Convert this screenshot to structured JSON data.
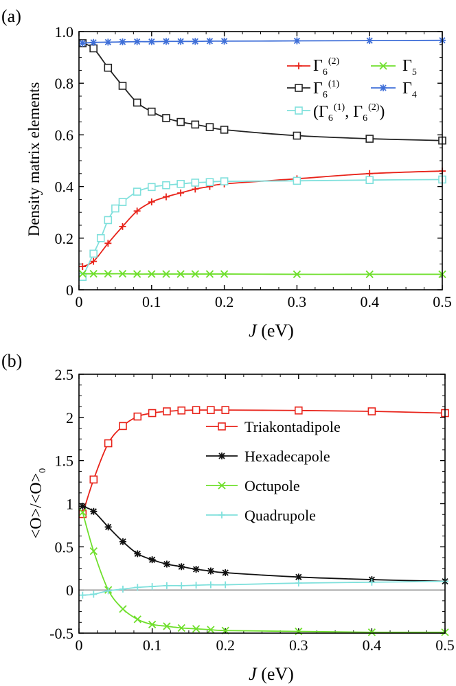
{
  "chart_data": [
    {
      "panel_label": "(a)",
      "type": "line",
      "title": "",
      "xlabel_italic": "J",
      "xlabel_rest": " (eV)",
      "ylabel": "Density matrix elements",
      "xlim": [
        0,
        0.5
      ],
      "ylim": [
        0,
        1.0
      ],
      "xticks": [
        0,
        0.1,
        0.2,
        0.3,
        0.4,
        0.5
      ],
      "xtick_labels": [
        "0",
        "0.1",
        "0.2",
        "0.3",
        "0.4",
        "0.5"
      ],
      "yticks": [
        0,
        0.2,
        0.4,
        0.6,
        0.8,
        1.0
      ],
      "ytick_labels": [
        "0",
        "0.2",
        "0.4",
        "0.6",
        "0.8",
        "1.0"
      ],
      "legend_position": "top-right",
      "series": [
        {
          "name": "Γ6(2)",
          "color": "#e8231a",
          "marker": "plus",
          "x": [
            0.005,
            0.02,
            0.04,
            0.06,
            0.08,
            0.1,
            0.12,
            0.14,
            0.16,
            0.18,
            0.2,
            0.3,
            0.4,
            0.5
          ],
          "values": [
            0.09,
            0.11,
            0.18,
            0.245,
            0.305,
            0.34,
            0.36,
            0.375,
            0.39,
            0.4,
            0.41,
            0.43,
            0.45,
            0.46
          ]
        },
        {
          "name": "Γ6(1)",
          "color": "#222222",
          "marker": "square",
          "x": [
            0.005,
            0.02,
            0.04,
            0.06,
            0.08,
            0.1,
            0.12,
            0.14,
            0.16,
            0.18,
            0.2,
            0.3,
            0.4,
            0.5
          ],
          "values": [
            0.955,
            0.935,
            0.86,
            0.79,
            0.725,
            0.69,
            0.665,
            0.65,
            0.64,
            0.63,
            0.62,
            0.597,
            0.585,
            0.578
          ]
        },
        {
          "name": "(Γ6(1), Γ6(2))",
          "color": "#7fe0dc",
          "marker": "square",
          "x": [
            0.005,
            0.02,
            0.03,
            0.04,
            0.05,
            0.06,
            0.08,
            0.1,
            0.12,
            0.14,
            0.16,
            0.18,
            0.2,
            0.3,
            0.4,
            0.5
          ],
          "values": [
            0.05,
            0.14,
            0.2,
            0.27,
            0.315,
            0.34,
            0.38,
            0.398,
            0.405,
            0.41,
            0.415,
            0.417,
            0.42,
            0.422,
            0.425,
            0.427
          ]
        },
        {
          "name": "Γ5",
          "color": "#6fdf2c",
          "marker": "x",
          "x": [
            0.005,
            0.02,
            0.04,
            0.06,
            0.08,
            0.1,
            0.12,
            0.14,
            0.16,
            0.18,
            0.2,
            0.3,
            0.4,
            0.5
          ],
          "values": [
            0.062,
            0.062,
            0.062,
            0.062,
            0.061,
            0.061,
            0.061,
            0.061,
            0.061,
            0.061,
            0.061,
            0.06,
            0.06,
            0.06
          ]
        },
        {
          "name": "Γ4",
          "color": "#3f6fd8",
          "marker": "star",
          "x": [
            0.005,
            0.02,
            0.04,
            0.06,
            0.08,
            0.1,
            0.12,
            0.14,
            0.16,
            0.18,
            0.2,
            0.3,
            0.4,
            0.5
          ],
          "values": [
            0.955,
            0.958,
            0.959,
            0.96,
            0.961,
            0.961,
            0.962,
            0.962,
            0.962,
            0.963,
            0.963,
            0.964,
            0.965,
            0.966
          ]
        }
      ],
      "legend": [
        {
          "series": 0,
          "base": "Γ",
          "sub": "6",
          "sup": "(2)"
        },
        {
          "series": 3,
          "base": "Γ",
          "sub": "5",
          "sup": ""
        },
        {
          "series": 1,
          "base": "Γ",
          "sub": "6",
          "sup": "(1)"
        },
        {
          "series": 4,
          "base": "Γ",
          "sub": "4",
          "sup": ""
        },
        {
          "series": 2,
          "pre": "(Γ",
          "sub1": "6",
          "sup1": "(1)",
          "mid": ", Γ",
          "sub2": "6",
          "sup2": "(2)",
          "post": ")"
        }
      ]
    },
    {
      "panel_label": "(b)",
      "type": "line",
      "title": "",
      "xlabel_italic": "J",
      "xlabel_rest": " (eV)",
      "ylabel": "<O>/<O>",
      "ylabel_sub": "0",
      "xlim": [
        0,
        0.5
      ],
      "ylim": [
        -0.5,
        2.5
      ],
      "xticks": [
        0,
        0.1,
        0.2,
        0.3,
        0.4,
        0.5
      ],
      "xtick_labels": [
        "0",
        "0.1",
        "0.2",
        "0.3",
        "0.4",
        "0.5"
      ],
      "yticks": [
        -0.5,
        0,
        0.5,
        1,
        1.5,
        2,
        2.5
      ],
      "ytick_labels": [
        "-0.5",
        "0",
        "0.5",
        "1",
        "1.5",
        "2",
        "2.5"
      ],
      "zero_line": true,
      "legend_position": "center-right",
      "series": [
        {
          "name": "Triakontadipole",
          "color": "#e8231a",
          "marker": "square",
          "x": [
            0.005,
            0.02,
            0.04,
            0.06,
            0.08,
            0.1,
            0.12,
            0.14,
            0.16,
            0.18,
            0.2,
            0.3,
            0.4,
            0.5
          ],
          "values": [
            0.88,
            1.28,
            1.7,
            1.9,
            2.01,
            2.05,
            2.07,
            2.08,
            2.085,
            2.085,
            2.085,
            2.08,
            2.07,
            2.05
          ]
        },
        {
          "name": "Hexadecapole",
          "color": "#111111",
          "marker": "star",
          "x": [
            0.005,
            0.02,
            0.04,
            0.06,
            0.08,
            0.1,
            0.12,
            0.14,
            0.16,
            0.18,
            0.2,
            0.3,
            0.4,
            0.5
          ],
          "values": [
            0.97,
            0.91,
            0.73,
            0.56,
            0.42,
            0.35,
            0.3,
            0.27,
            0.24,
            0.22,
            0.2,
            0.15,
            0.12,
            0.1
          ]
        },
        {
          "name": "Octupole",
          "color": "#6fdf2c",
          "marker": "x",
          "x": [
            0.005,
            0.02,
            0.04,
            0.06,
            0.08,
            0.1,
            0.12,
            0.14,
            0.16,
            0.18,
            0.2,
            0.3,
            0.4,
            0.5
          ],
          "values": [
            0.9,
            0.45,
            0.0,
            -0.22,
            -0.34,
            -0.4,
            -0.42,
            -0.44,
            -0.45,
            -0.46,
            -0.47,
            -0.48,
            -0.49,
            -0.49
          ]
        },
        {
          "name": "Quadrupole",
          "color": "#7fe0dc",
          "marker": "plus",
          "x": [
            0.005,
            0.02,
            0.04,
            0.06,
            0.08,
            0.1,
            0.12,
            0.14,
            0.16,
            0.18,
            0.2,
            0.3,
            0.4,
            0.5
          ],
          "values": [
            -0.06,
            -0.05,
            -0.01,
            0.01,
            0.03,
            0.04,
            0.05,
            0.05,
            0.055,
            0.06,
            0.06,
            0.08,
            0.09,
            0.1
          ]
        }
      ],
      "legend": [
        {
          "series": 0,
          "label": "Triakontadipole"
        },
        {
          "series": 1,
          "label": "Hexadecapole"
        },
        {
          "series": 2,
          "label": "Octupole"
        },
        {
          "series": 3,
          "label": "Quadrupole"
        }
      ]
    }
  ]
}
